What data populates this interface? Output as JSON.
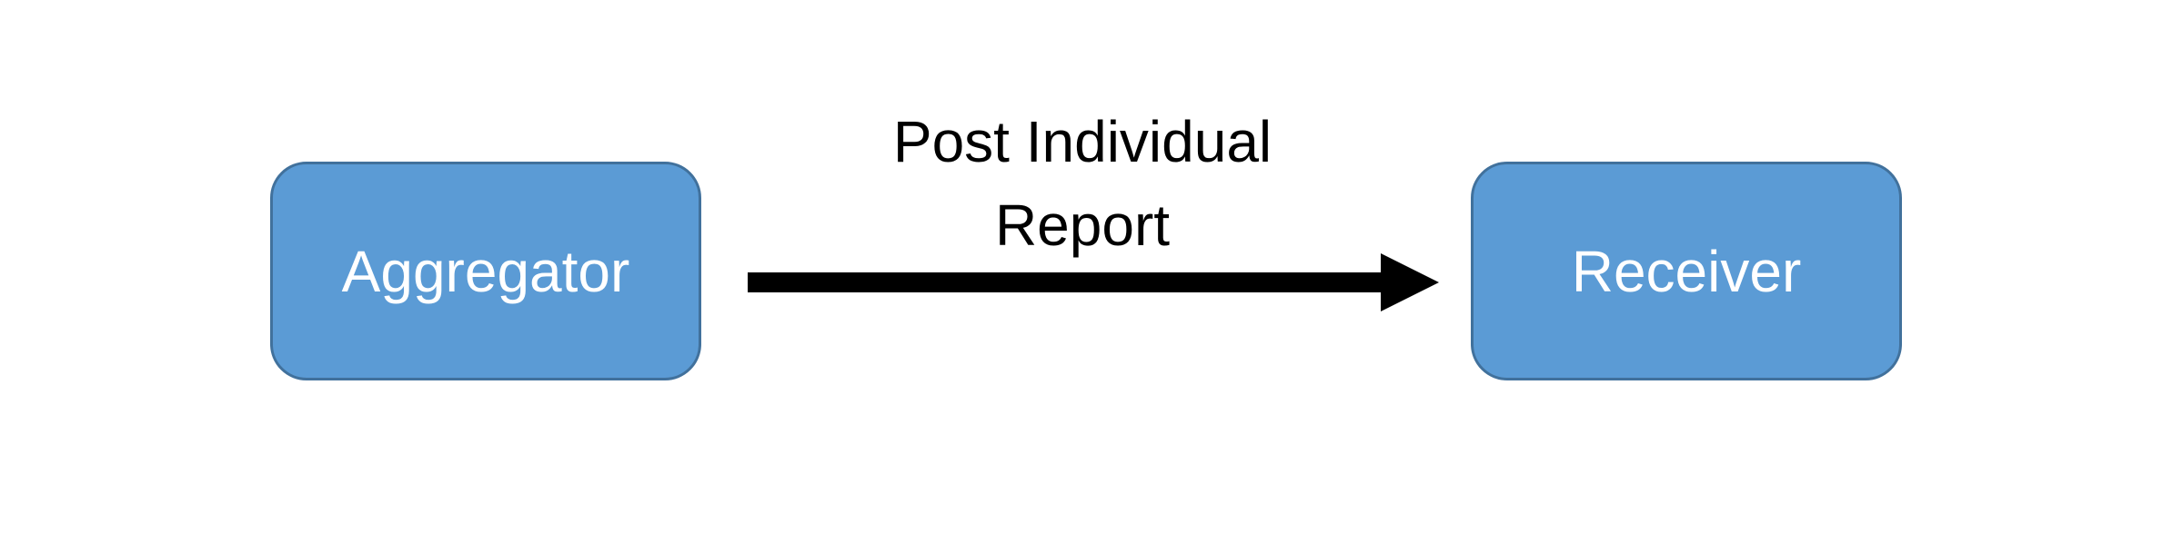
{
  "diagram": {
    "nodes": [
      {
        "id": "aggregator",
        "label": "Aggregator"
      },
      {
        "id": "receiver",
        "label": "Receiver"
      }
    ],
    "edges": [
      {
        "from": "aggregator",
        "to": "receiver",
        "label_lines": [
          "Post Individual",
          "Report"
        ]
      }
    ]
  },
  "colors": {
    "node_fill": "#5b9bd5",
    "node_border": "#41719c",
    "node_text": "#ffffff",
    "arrow": "#000000",
    "background": "#ffffff"
  }
}
